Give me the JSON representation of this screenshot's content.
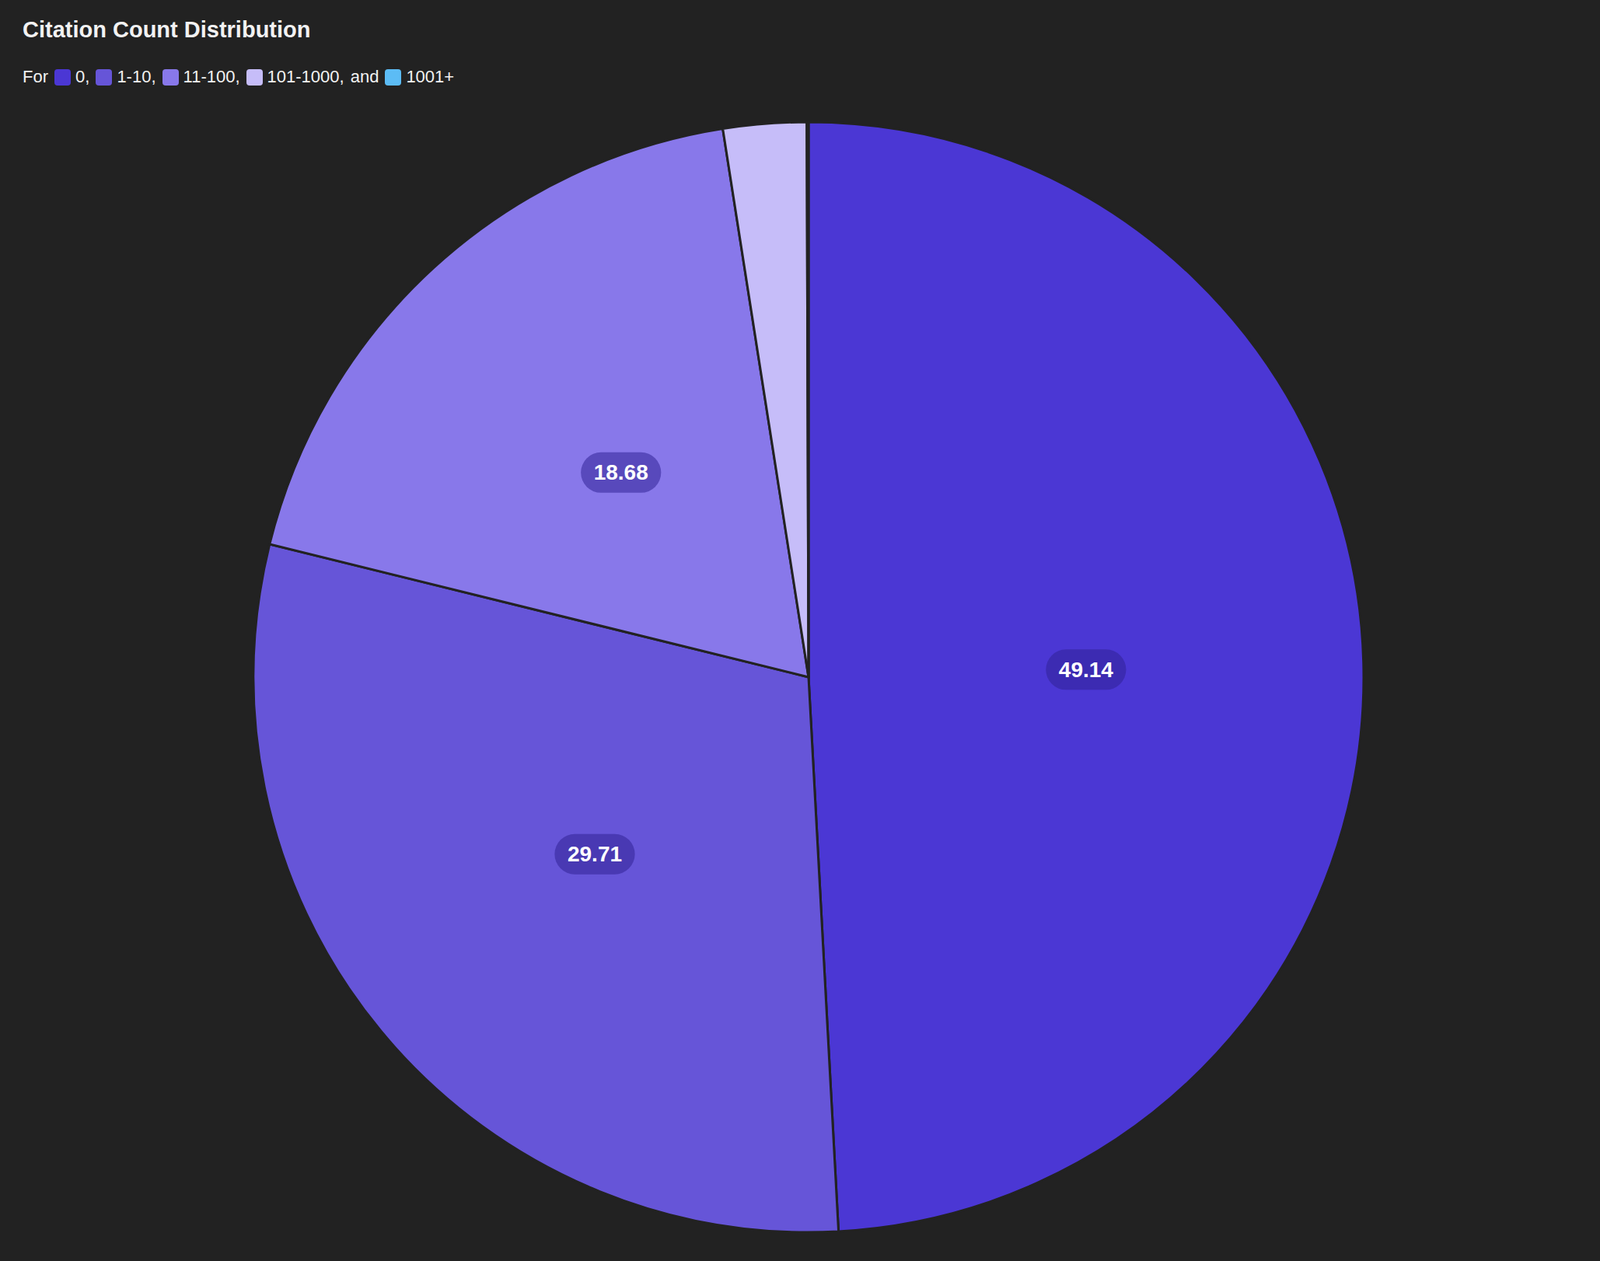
{
  "chart_data": {
    "type": "pie",
    "title": "Citation Count Distribution",
    "legend_text": {
      "prefix": "For",
      "separator": ",",
      "conjunction": "and"
    },
    "categories": [
      "0",
      "1-10",
      "11-100",
      "101-1000",
      "1001+"
    ],
    "values": [
      49.14,
      29.71,
      18.68,
      2.42,
      0.05
    ],
    "colors": [
      "#4b37d4",
      "#6655d8",
      "#8878ea",
      "#c6bdf9",
      "#5cbcf5"
    ],
    "data_labels": true,
    "value_labels": [
      "49.14",
      "29.71",
      "18.68",
      null,
      null
    ],
    "legend": "top-left"
  }
}
